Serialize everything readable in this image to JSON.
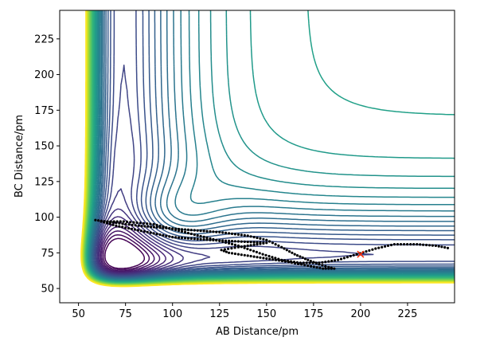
{
  "chart_data": {
    "type": "contour",
    "title": "",
    "xlabel": "AB Distance/pm",
    "ylabel": "BC Distance/pm",
    "xlim": [
      40,
      250
    ],
    "ylim": [
      40,
      245
    ],
    "x_ticks": [
      50,
      75,
      100,
      125,
      150,
      175,
      200,
      225
    ],
    "y_ticks": [
      50,
      75,
      100,
      125,
      150,
      175,
      200,
      225
    ],
    "x_tick_labels": [
      "50",
      "75",
      "100",
      "125",
      "150",
      "175",
      "200",
      "225"
    ],
    "y_tick_labels": [
      "50",
      "75",
      "100",
      "125",
      "150",
      "175",
      "200",
      "225"
    ],
    "colormap": "viridis",
    "colormap_colors": [
      "#440154",
      "#482878",
      "#3e4a89",
      "#31688e",
      "#26828e",
      "#1f9e89",
      "#35b779",
      "#6ece58",
      "#b5de2b",
      "#fde725"
    ],
    "contour_levels": 40,
    "grid": false,
    "trajectory": {
      "style": "dotted",
      "color": "#000000",
      "points": [
        [
          59,
          98
        ],
        [
          70,
          96
        ],
        [
          82,
          94
        ],
        [
          95,
          92.5
        ],
        [
          110,
          91
        ],
        [
          125,
          89.5
        ],
        [
          140,
          87
        ],
        [
          150,
          84
        ],
        [
          158,
          79
        ],
        [
          165,
          74
        ],
        [
          172,
          70
        ],
        [
          178,
          67
        ],
        [
          183,
          65
        ],
        [
          186,
          64
        ],
        [
          180,
          64
        ],
        [
          172,
          66
        ],
        [
          160,
          69
        ],
        [
          150,
          71
        ],
        [
          140,
          73
        ],
        [
          130,
          75
        ],
        [
          126,
          77
        ],
        [
          135,
          79
        ],
        [
          150,
          82
        ],
        [
          120,
          84
        ],
        [
          100,
          86
        ],
        [
          85,
          90
        ],
        [
          70,
          94
        ],
        [
          62,
          97
        ],
        [
          74,
          97
        ],
        [
          90,
          95
        ],
        [
          105,
          90
        ],
        [
          120,
          85
        ],
        [
          135,
          80
        ],
        [
          148,
          74
        ],
        [
          158,
          70
        ],
        [
          168,
          68
        ],
        [
          178,
          68
        ],
        [
          188,
          70
        ],
        [
          198,
          74
        ],
        [
          208,
          78
        ],
        [
          218,
          81
        ],
        [
          230,
          81
        ],
        [
          240,
          80
        ],
        [
          248,
          78
        ]
      ]
    },
    "marker": {
      "symbol": "x",
      "color": "#ff2a00",
      "x": 200,
      "y": 74
    }
  }
}
